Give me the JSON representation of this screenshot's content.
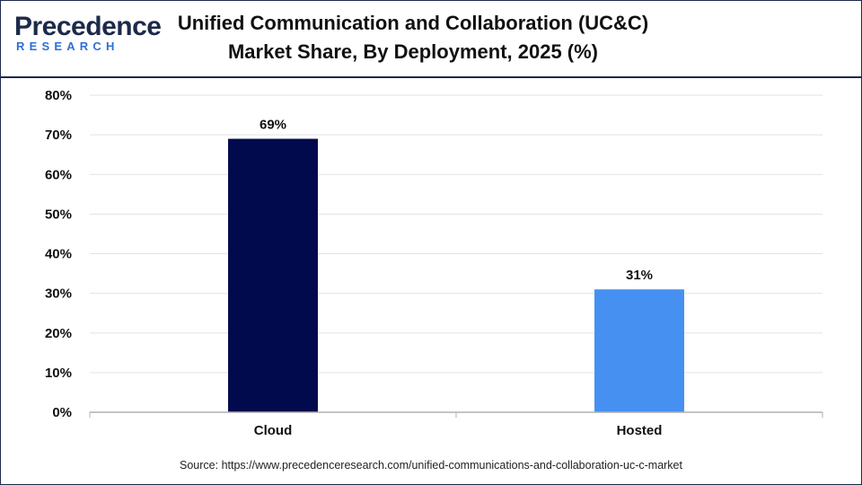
{
  "header": {
    "logo_main": "Precedence",
    "logo_sub": "RESEARCH",
    "title": "Unified Communication and Collaboration (UC&C) Market Share, By Deployment, 2025 (%)"
  },
  "footer": {
    "source": "Source: https://www.precedenceresearch.com/unified-communications-and-collaboration-uc-c-market"
  },
  "colors": {
    "cloud_bar": "#020a4e",
    "hosted_bar": "#4590f0",
    "grid": "#e3e3e3",
    "axis": "#b0b0b0",
    "brand_dark": "#1c2a4a",
    "brand_blue": "#2e6fd8"
  },
  "chart_data": {
    "type": "bar",
    "title": "Unified Communication and Collaboration (UC&C) Market Share, By Deployment, 2025 (%)",
    "categories": [
      "Cloud",
      "Hosted"
    ],
    "values": [
      69,
      31
    ],
    "data_labels": [
      "69%",
      "31%"
    ],
    "bar_colors": [
      "#020a4e",
      "#4590f0"
    ],
    "ylim": [
      0,
      80
    ],
    "yticks": [
      0,
      10,
      20,
      30,
      40,
      50,
      60,
      70,
      80
    ],
    "ytick_labels": [
      "0%",
      "10%",
      "20%",
      "30%",
      "40%",
      "50%",
      "60%",
      "70%",
      "80%"
    ],
    "xlabel": "",
    "ylabel": "",
    "grid": true,
    "legend": "none"
  }
}
